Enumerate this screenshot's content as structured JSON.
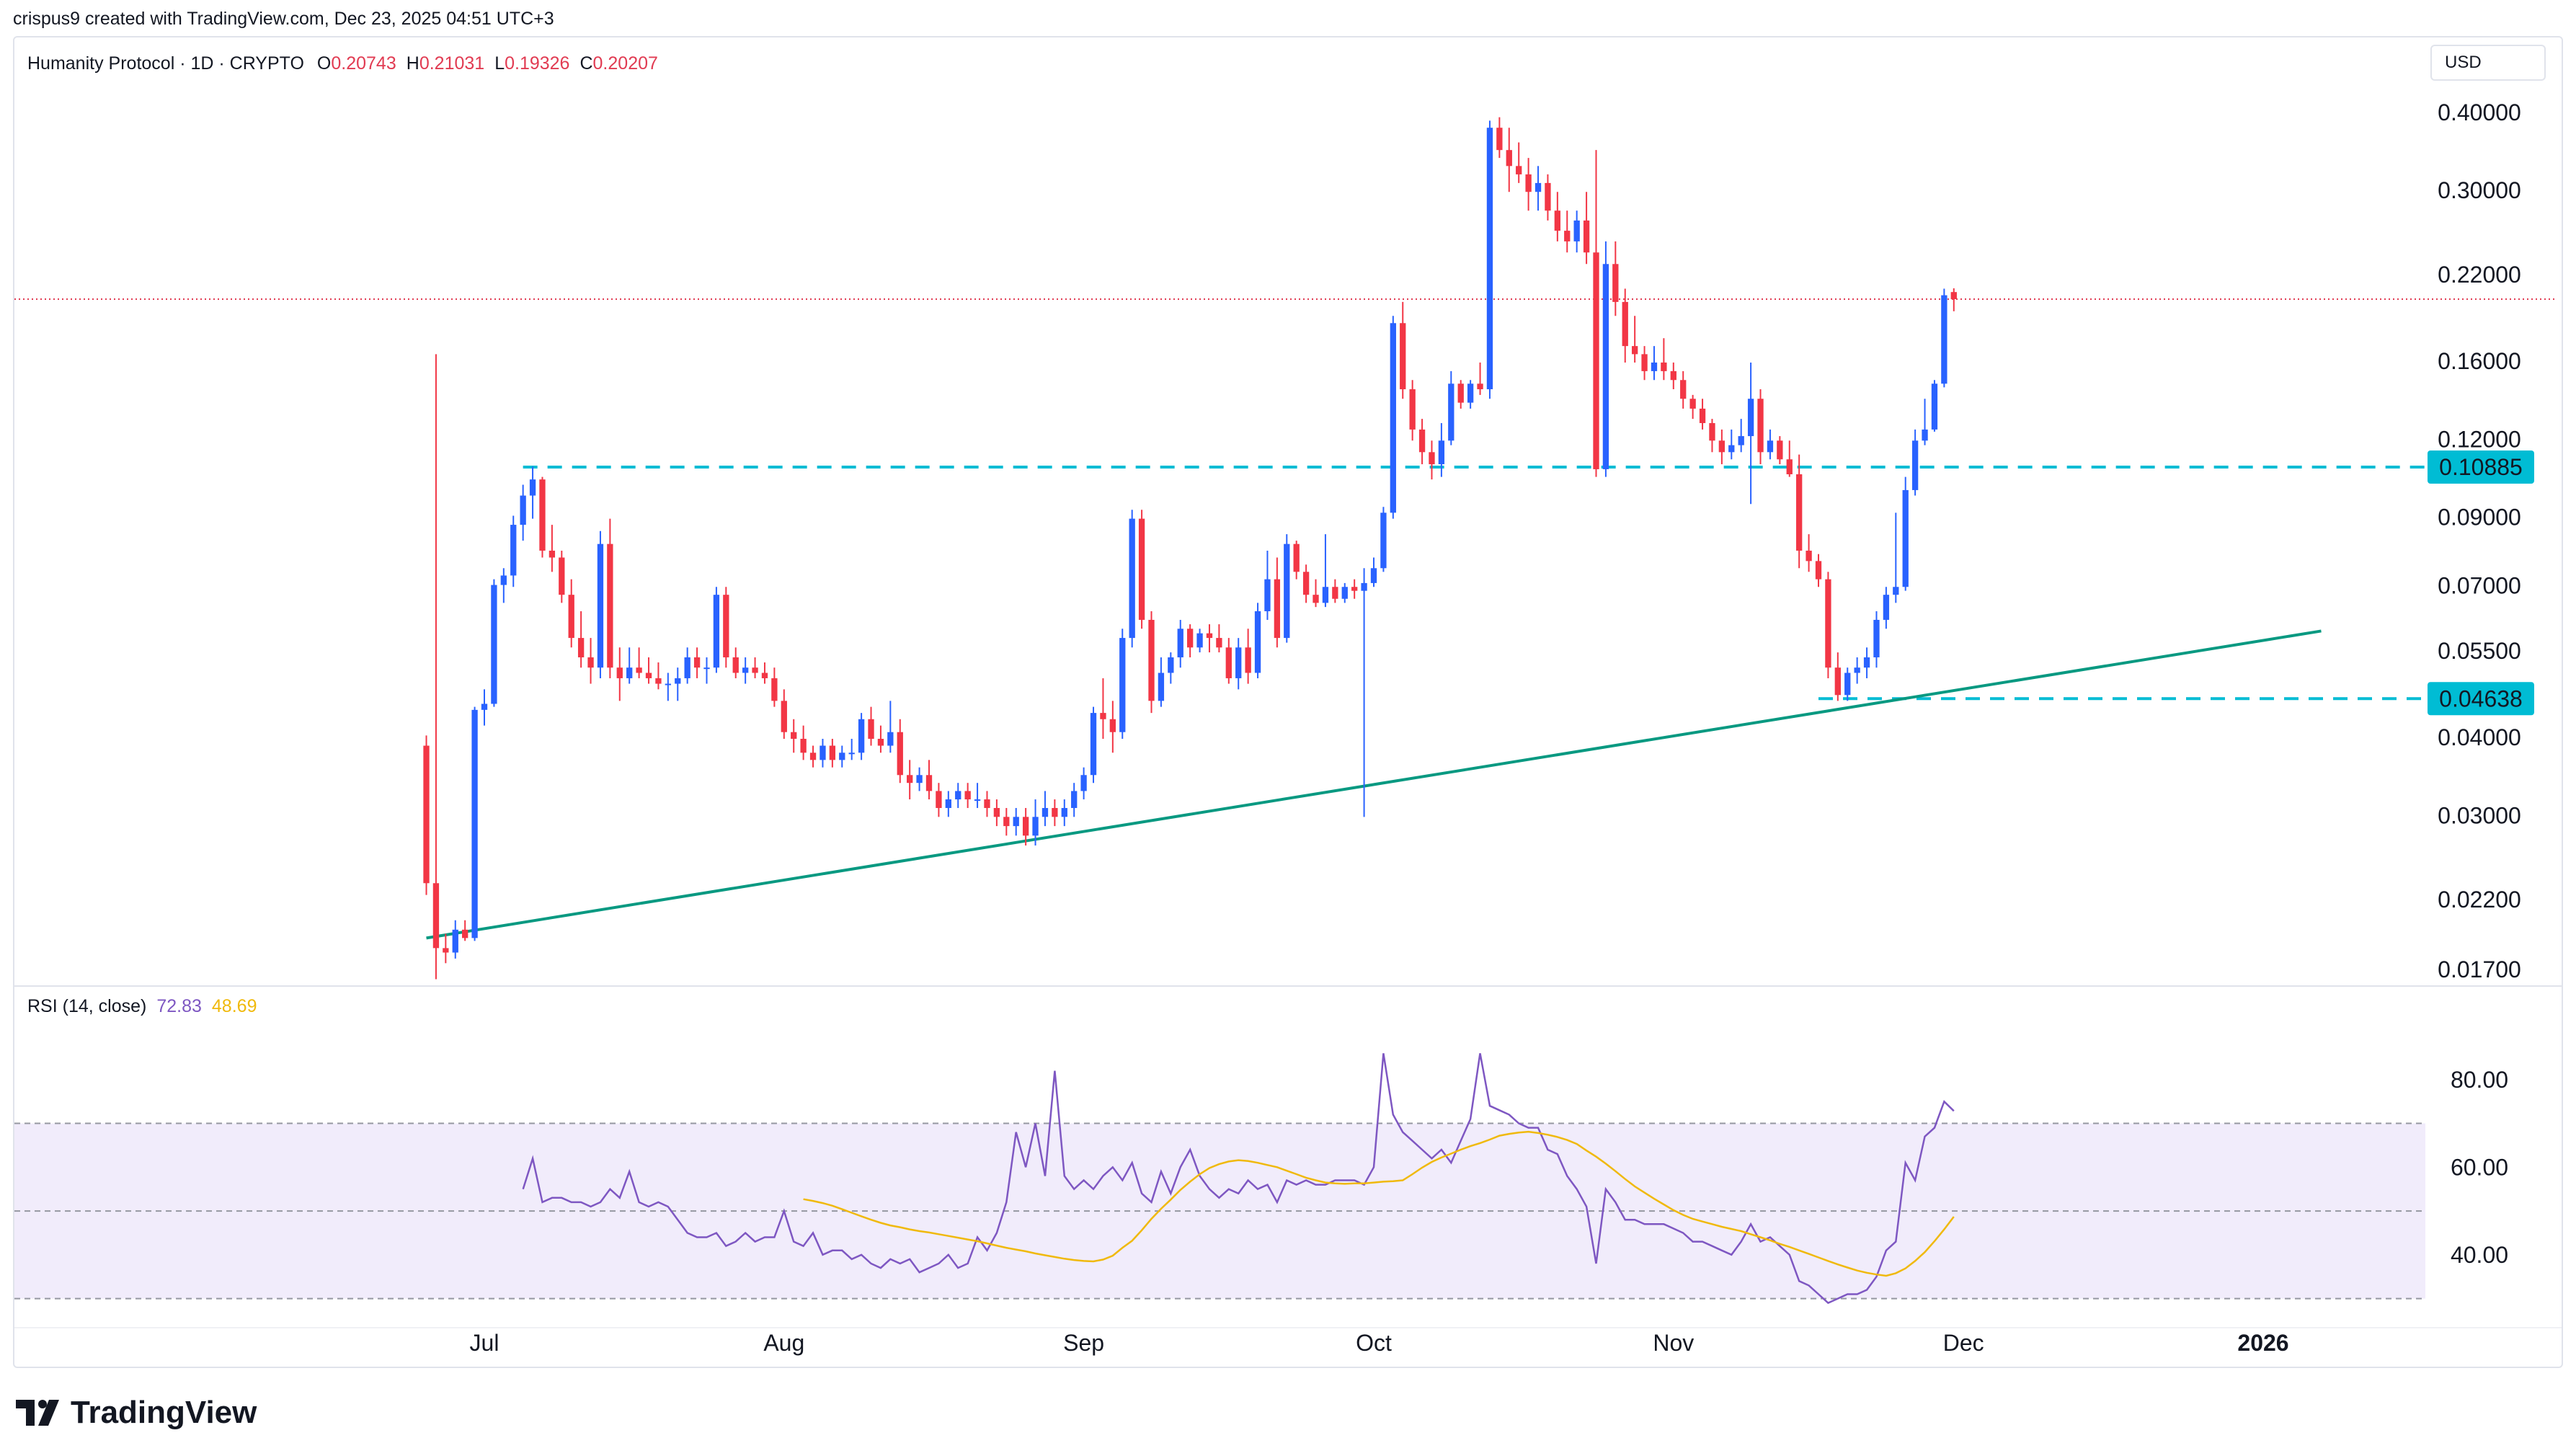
{
  "attribution": "crispus9 created with TradingView.com, Dec 23, 2025 04:51 UTC+3",
  "legend": {
    "symbol": "Humanity Protocol · 1D · CRYPTO",
    "open_label": "O",
    "open": "0.20743",
    "high_label": "H",
    "high": "0.21031",
    "low_label": "L",
    "low": "0.19326",
    "close_label": "C",
    "close": "0.20207"
  },
  "currency": "USD",
  "price_axis": {
    "labels": [
      "0.40000",
      "0.30000",
      "0.22000",
      "0.16000",
      "0.12000",
      "0.09000",
      "0.07000",
      "0.05500",
      "0.04000",
      "0.03000",
      "0.02200",
      "0.01700"
    ],
    "scale": "log"
  },
  "levels": [
    {
      "value": "0.10885",
      "color": "#00bcd4",
      "style": "dashed"
    },
    {
      "value": "0.04638",
      "color": "#00bcd4",
      "style": "dashed"
    }
  ],
  "current_price_line": {
    "value": 0.20207,
    "color": "#e13b52"
  },
  "trendline": {
    "color": "#089981",
    "from": {
      "date": "Jun 25",
      "price": 0.0192
    },
    "to": {
      "date": "Jan 07",
      "price": 0.0595
    }
  },
  "time_axis": {
    "labels": [
      "Jul",
      "Aug",
      "Sep",
      "Oct",
      "Nov",
      "Dec",
      "2026"
    ]
  },
  "rsi": {
    "legend_label": "RSI (14, close)",
    "rsi_value": "72.83",
    "ma_value": "48.69",
    "axis_labels": [
      "80.00",
      "60.00",
      "40.00"
    ],
    "band_upper": 70,
    "band_mid": 50,
    "band_lower": 30,
    "rsi_color": "#7e57c2",
    "ma_color": "#f0b90b"
  },
  "colors": {
    "up": "#2962ff",
    "down": "#f23645",
    "band": "#f1ecfb"
  },
  "footer": {
    "logo_text": "TradingView"
  },
  "chart_data": {
    "type": "candlestick",
    "interval": "1D",
    "x_start": "2025-06-25",
    "candles_ohlc": [
      [
        0.039,
        0.0405,
        0.0225,
        0.0235
      ],
      [
        0.0235,
        0.165,
        0.0165,
        0.0185
      ],
      [
        0.0185,
        0.0195,
        0.0175,
        0.0182
      ],
      [
        0.0182,
        0.0205,
        0.0178,
        0.0198
      ],
      [
        0.0198,
        0.0205,
        0.019,
        0.0192
      ],
      [
        0.0192,
        0.045,
        0.019,
        0.0445
      ],
      [
        0.0445,
        0.048,
        0.042,
        0.0455
      ],
      [
        0.0455,
        0.072,
        0.045,
        0.0705
      ],
      [
        0.0705,
        0.075,
        0.066,
        0.073
      ],
      [
        0.073,
        0.091,
        0.07,
        0.088
      ],
      [
        0.088,
        0.102,
        0.083,
        0.098
      ],
      [
        0.098,
        0.109,
        0.09,
        0.104
      ],
      [
        0.104,
        0.105,
        0.078,
        0.08
      ],
      [
        0.08,
        0.088,
        0.074,
        0.078
      ],
      [
        0.078,
        0.08,
        0.066,
        0.068
      ],
      [
        0.068,
        0.072,
        0.056,
        0.058
      ],
      [
        0.058,
        0.064,
        0.052,
        0.054
      ],
      [
        0.054,
        0.058,
        0.049,
        0.052
      ],
      [
        0.052,
        0.086,
        0.05,
        0.082
      ],
      [
        0.082,
        0.09,
        0.05,
        0.052
      ],
      [
        0.052,
        0.056,
        0.046,
        0.05
      ],
      [
        0.05,
        0.056,
        0.049,
        0.052
      ],
      [
        0.052,
        0.056,
        0.05,
        0.051
      ],
      [
        0.051,
        0.054,
        0.049,
        0.05
      ],
      [
        0.05,
        0.053,
        0.048,
        0.049
      ],
      [
        0.049,
        0.051,
        0.046,
        0.049
      ],
      [
        0.049,
        0.052,
        0.046,
        0.05
      ],
      [
        0.05,
        0.056,
        0.049,
        0.054
      ],
      [
        0.054,
        0.056,
        0.05,
        0.052
      ],
      [
        0.052,
        0.054,
        0.049,
        0.052
      ],
      [
        0.052,
        0.07,
        0.051,
        0.068
      ],
      [
        0.068,
        0.07,
        0.052,
        0.054
      ],
      [
        0.054,
        0.056,
        0.05,
        0.051
      ],
      [
        0.051,
        0.054,
        0.049,
        0.052
      ],
      [
        0.052,
        0.054,
        0.05,
        0.051
      ],
      [
        0.051,
        0.053,
        0.049,
        0.05
      ],
      [
        0.05,
        0.052,
        0.045,
        0.046
      ],
      [
        0.046,
        0.048,
        0.04,
        0.041
      ],
      [
        0.041,
        0.043,
        0.038,
        0.04
      ],
      [
        0.04,
        0.042,
        0.037,
        0.038
      ],
      [
        0.038,
        0.039,
        0.036,
        0.037
      ],
      [
        0.037,
        0.04,
        0.036,
        0.039
      ],
      [
        0.039,
        0.04,
        0.036,
        0.037
      ],
      [
        0.037,
        0.039,
        0.036,
        0.038
      ],
      [
        0.038,
        0.04,
        0.037,
        0.038
      ],
      [
        0.038,
        0.044,
        0.037,
        0.043
      ],
      [
        0.043,
        0.045,
        0.039,
        0.04
      ],
      [
        0.04,
        0.042,
        0.038,
        0.039
      ],
      [
        0.039,
        0.046,
        0.038,
        0.041
      ],
      [
        0.041,
        0.043,
        0.034,
        0.035
      ],
      [
        0.035,
        0.037,
        0.032,
        0.034
      ],
      [
        0.034,
        0.036,
        0.033,
        0.035
      ],
      [
        0.035,
        0.037,
        0.032,
        0.033
      ],
      [
        0.033,
        0.034,
        0.03,
        0.031
      ],
      [
        0.031,
        0.033,
        0.03,
        0.032
      ],
      [
        0.032,
        0.034,
        0.031,
        0.033
      ],
      [
        0.033,
        0.034,
        0.031,
        0.032
      ],
      [
        0.032,
        0.034,
        0.031,
        0.032
      ],
      [
        0.032,
        0.033,
        0.03,
        0.031
      ],
      [
        0.031,
        0.032,
        0.029,
        0.03
      ],
      [
        0.03,
        0.031,
        0.028,
        0.029
      ],
      [
        0.029,
        0.031,
        0.028,
        0.03
      ],
      [
        0.03,
        0.031,
        0.027,
        0.028
      ],
      [
        0.028,
        0.032,
        0.027,
        0.03
      ],
      [
        0.03,
        0.033,
        0.029,
        0.031
      ],
      [
        0.031,
        0.032,
        0.029,
        0.03
      ],
      [
        0.03,
        0.032,
        0.029,
        0.031
      ],
      [
        0.031,
        0.034,
        0.03,
        0.033
      ],
      [
        0.033,
        0.036,
        0.032,
        0.035
      ],
      [
        0.035,
        0.045,
        0.034,
        0.044
      ],
      [
        0.044,
        0.05,
        0.04,
        0.043
      ],
      [
        0.043,
        0.046,
        0.038,
        0.041
      ],
      [
        0.041,
        0.06,
        0.04,
        0.058
      ],
      [
        0.058,
        0.093,
        0.056,
        0.09
      ],
      [
        0.09,
        0.093,
        0.06,
        0.062
      ],
      [
        0.062,
        0.064,
        0.044,
        0.046
      ],
      [
        0.046,
        0.054,
        0.045,
        0.051
      ],
      [
        0.051,
        0.055,
        0.049,
        0.054
      ],
      [
        0.054,
        0.062,
        0.052,
        0.06
      ],
      [
        0.06,
        0.061,
        0.054,
        0.056
      ],
      [
        0.056,
        0.06,
        0.055,
        0.059
      ],
      [
        0.059,
        0.061,
        0.055,
        0.058
      ],
      [
        0.058,
        0.061,
        0.055,
        0.056
      ],
      [
        0.056,
        0.058,
        0.049,
        0.05
      ],
      [
        0.05,
        0.058,
        0.048,
        0.056
      ],
      [
        0.056,
        0.06,
        0.049,
        0.051
      ],
      [
        0.051,
        0.066,
        0.05,
        0.064
      ],
      [
        0.064,
        0.08,
        0.062,
        0.072
      ],
      [
        0.072,
        0.078,
        0.056,
        0.058
      ],
      [
        0.058,
        0.085,
        0.057,
        0.082
      ],
      [
        0.082,
        0.083,
        0.072,
        0.074
      ],
      [
        0.074,
        0.076,
        0.066,
        0.068
      ],
      [
        0.068,
        0.072,
        0.065,
        0.066
      ],
      [
        0.066,
        0.085,
        0.065,
        0.07
      ],
      [
        0.07,
        0.072,
        0.066,
        0.067
      ],
      [
        0.067,
        0.071,
        0.066,
        0.07
      ],
      [
        0.07,
        0.072,
        0.067,
        0.069
      ],
      [
        0.069,
        0.075,
        0.03,
        0.071
      ],
      [
        0.071,
        0.078,
        0.07,
        0.075
      ],
      [
        0.075,
        0.094,
        0.074,
        0.092
      ],
      [
        0.092,
        0.19,
        0.09,
        0.185
      ],
      [
        0.185,
        0.2,
        0.14,
        0.145
      ],
      [
        0.145,
        0.15,
        0.12,
        0.125
      ],
      [
        0.125,
        0.13,
        0.11,
        0.115
      ],
      [
        0.115,
        0.12,
        0.104,
        0.11
      ],
      [
        0.11,
        0.128,
        0.105,
        0.12
      ],
      [
        0.12,
        0.155,
        0.118,
        0.148
      ],
      [
        0.148,
        0.15,
        0.135,
        0.138
      ],
      [
        0.138,
        0.15,
        0.135,
        0.148
      ],
      [
        0.148,
        0.16,
        0.142,
        0.145
      ],
      [
        0.145,
        0.39,
        0.14,
        0.38
      ],
      [
        0.38,
        0.395,
        0.34,
        0.35
      ],
      [
        0.35,
        0.38,
        0.3,
        0.33
      ],
      [
        0.33,
        0.36,
        0.31,
        0.32
      ],
      [
        0.32,
        0.34,
        0.28,
        0.3
      ],
      [
        0.3,
        0.33,
        0.28,
        0.31
      ],
      [
        0.31,
        0.32,
        0.27,
        0.28
      ],
      [
        0.28,
        0.3,
        0.25,
        0.26
      ],
      [
        0.26,
        0.28,
        0.24,
        0.25
      ],
      [
        0.25,
        0.28,
        0.24,
        0.27
      ],
      [
        0.27,
        0.3,
        0.23,
        0.24
      ],
      [
        0.24,
        0.35,
        0.105,
        0.108
      ],
      [
        0.108,
        0.25,
        0.105,
        0.23
      ],
      [
        0.23,
        0.25,
        0.19,
        0.2
      ],
      [
        0.2,
        0.21,
        0.16,
        0.17
      ],
      [
        0.17,
        0.19,
        0.16,
        0.165
      ],
      [
        0.165,
        0.17,
        0.15,
        0.155
      ],
      [
        0.155,
        0.17,
        0.15,
        0.16
      ],
      [
        0.16,
        0.175,
        0.15,
        0.155
      ],
      [
        0.155,
        0.16,
        0.145,
        0.15
      ],
      [
        0.15,
        0.155,
        0.135,
        0.14
      ],
      [
        0.14,
        0.142,
        0.13,
        0.135
      ],
      [
        0.135,
        0.14,
        0.125,
        0.128
      ],
      [
        0.128,
        0.13,
        0.115,
        0.12
      ],
      [
        0.12,
        0.125,
        0.11,
        0.115
      ],
      [
        0.115,
        0.125,
        0.112,
        0.118
      ],
      [
        0.118,
        0.13,
        0.115,
        0.122
      ],
      [
        0.122,
        0.16,
        0.095,
        0.14
      ],
      [
        0.14,
        0.145,
        0.11,
        0.115
      ],
      [
        0.115,
        0.125,
        0.112,
        0.12
      ],
      [
        0.12,
        0.122,
        0.11,
        0.112
      ],
      [
        0.112,
        0.12,
        0.105,
        0.106
      ],
      [
        0.106,
        0.114,
        0.075,
        0.08
      ],
      [
        0.08,
        0.085,
        0.074,
        0.077
      ],
      [
        0.077,
        0.079,
        0.07,
        0.072
      ],
      [
        0.072,
        0.074,
        0.05,
        0.052
      ],
      [
        0.052,
        0.055,
        0.046,
        0.047
      ],
      [
        0.047,
        0.052,
        0.046,
        0.051
      ],
      [
        0.051,
        0.054,
        0.049,
        0.052
      ],
      [
        0.052,
        0.056,
        0.05,
        0.054
      ],
      [
        0.054,
        0.064,
        0.052,
        0.062
      ],
      [
        0.062,
        0.07,
        0.06,
        0.068
      ],
      [
        0.068,
        0.092,
        0.066,
        0.07
      ],
      [
        0.07,
        0.105,
        0.069,
        0.1
      ],
      [
        0.1,
        0.125,
        0.098,
        0.12
      ],
      [
        0.12,
        0.14,
        0.118,
        0.125
      ],
      [
        0.125,
        0.15,
        0.124,
        0.148
      ],
      [
        0.148,
        0.21,
        0.146,
        0.205
      ],
      [
        0.20743,
        0.21031,
        0.19326,
        0.20207
      ]
    ],
    "rsi": [
      55,
      62,
      52,
      53,
      53,
      52,
      52,
      51,
      52,
      55,
      53,
      59,
      52,
      51,
      52,
      51,
      48,
      45,
      44,
      44,
      45,
      42,
      43,
      45,
      43,
      44,
      44,
      50,
      43,
      42,
      45,
      40,
      41,
      41,
      39,
      40,
      38,
      37,
      39,
      38,
      39,
      36,
      37,
      38,
      40,
      37,
      38,
      44,
      41,
      45,
      52,
      68,
      60,
      70,
      58,
      82,
      58,
      55,
      57,
      55,
      58,
      60,
      57,
      61,
      54,
      52,
      59,
      54,
      60,
      64,
      58,
      55,
      53,
      55,
      54,
      57,
      55,
      56,
      52,
      57,
      56,
      57,
      56,
      56,
      57,
      57,
      57,
      56,
      60,
      86,
      72,
      68,
      66,
      64,
      62,
      64,
      61,
      66,
      71,
      86,
      74,
      73,
      72,
      70,
      69,
      69,
      64,
      63,
      58,
      55,
      51,
      38,
      55,
      52,
      48,
      48,
      47,
      47,
      47,
      46,
      45,
      43,
      43,
      42,
      41,
      40,
      43,
      47,
      43,
      44,
      42,
      40,
      34,
      33,
      31,
      29,
      30,
      31,
      31,
      32,
      35,
      41,
      43,
      61,
      57,
      67,
      69,
      75,
      72.83
    ],
    "rsi_ma": [
      null,
      null,
      null,
      null,
      null,
      null,
      null,
      null,
      null,
      null,
      null,
      null,
      null,
      null,
      52.7,
      52.3,
      51.8,
      51.2,
      50.4,
      49.6,
      48.8,
      48.0,
      47.3,
      46.7,
      46.3,
      45.8,
      45.4,
      45.1,
      44.7,
      44.3,
      43.9,
      43.5,
      43.1,
      42.6,
      42.1,
      41.6,
      41.2,
      40.8,
      40.3,
      39.9,
      39.5,
      39.1,
      38.8,
      38.6,
      38.5,
      38.9,
      39.8,
      41.6,
      43.2,
      45.6,
      48.2,
      50.5,
      52.6,
      54.8,
      56.7,
      58.4,
      59.8,
      60.7,
      61.3,
      61.6,
      61.4,
      61.0,
      60.5,
      60.0,
      59.2,
      58.4,
      57.6,
      57.0,
      56.5,
      56.3,
      56.2,
      56.3,
      56.3,
      56.5,
      56.7,
      56.8,
      57.0,
      58.4,
      59.9,
      61.2,
      62.2,
      63.1,
      64.0,
      64.8,
      65.5,
      66.3,
      67.2,
      67.6,
      67.9,
      68.1,
      67.8,
      67.4,
      66.9,
      66.2,
      65.3,
      63.8,
      62.4,
      60.8,
      59.1,
      57.3,
      55.6,
      54.2,
      52.8,
      51.5,
      50.2,
      49.1,
      48.2,
      47.6,
      47.0,
      46.4,
      45.9,
      45.4,
      44.7,
      44.0,
      43.3,
      42.5,
      41.8,
      41.0,
      40.2,
      39.4,
      38.6,
      37.8,
      37.1,
      36.4,
      35.9,
      35.5,
      35.2,
      35.8,
      36.9,
      38.6,
      40.6,
      43.1,
      45.8,
      48.69
    ],
    "ylim": [
      0.0155,
      0.44
    ],
    "rsi_ylim": [
      25,
      90
    ]
  }
}
